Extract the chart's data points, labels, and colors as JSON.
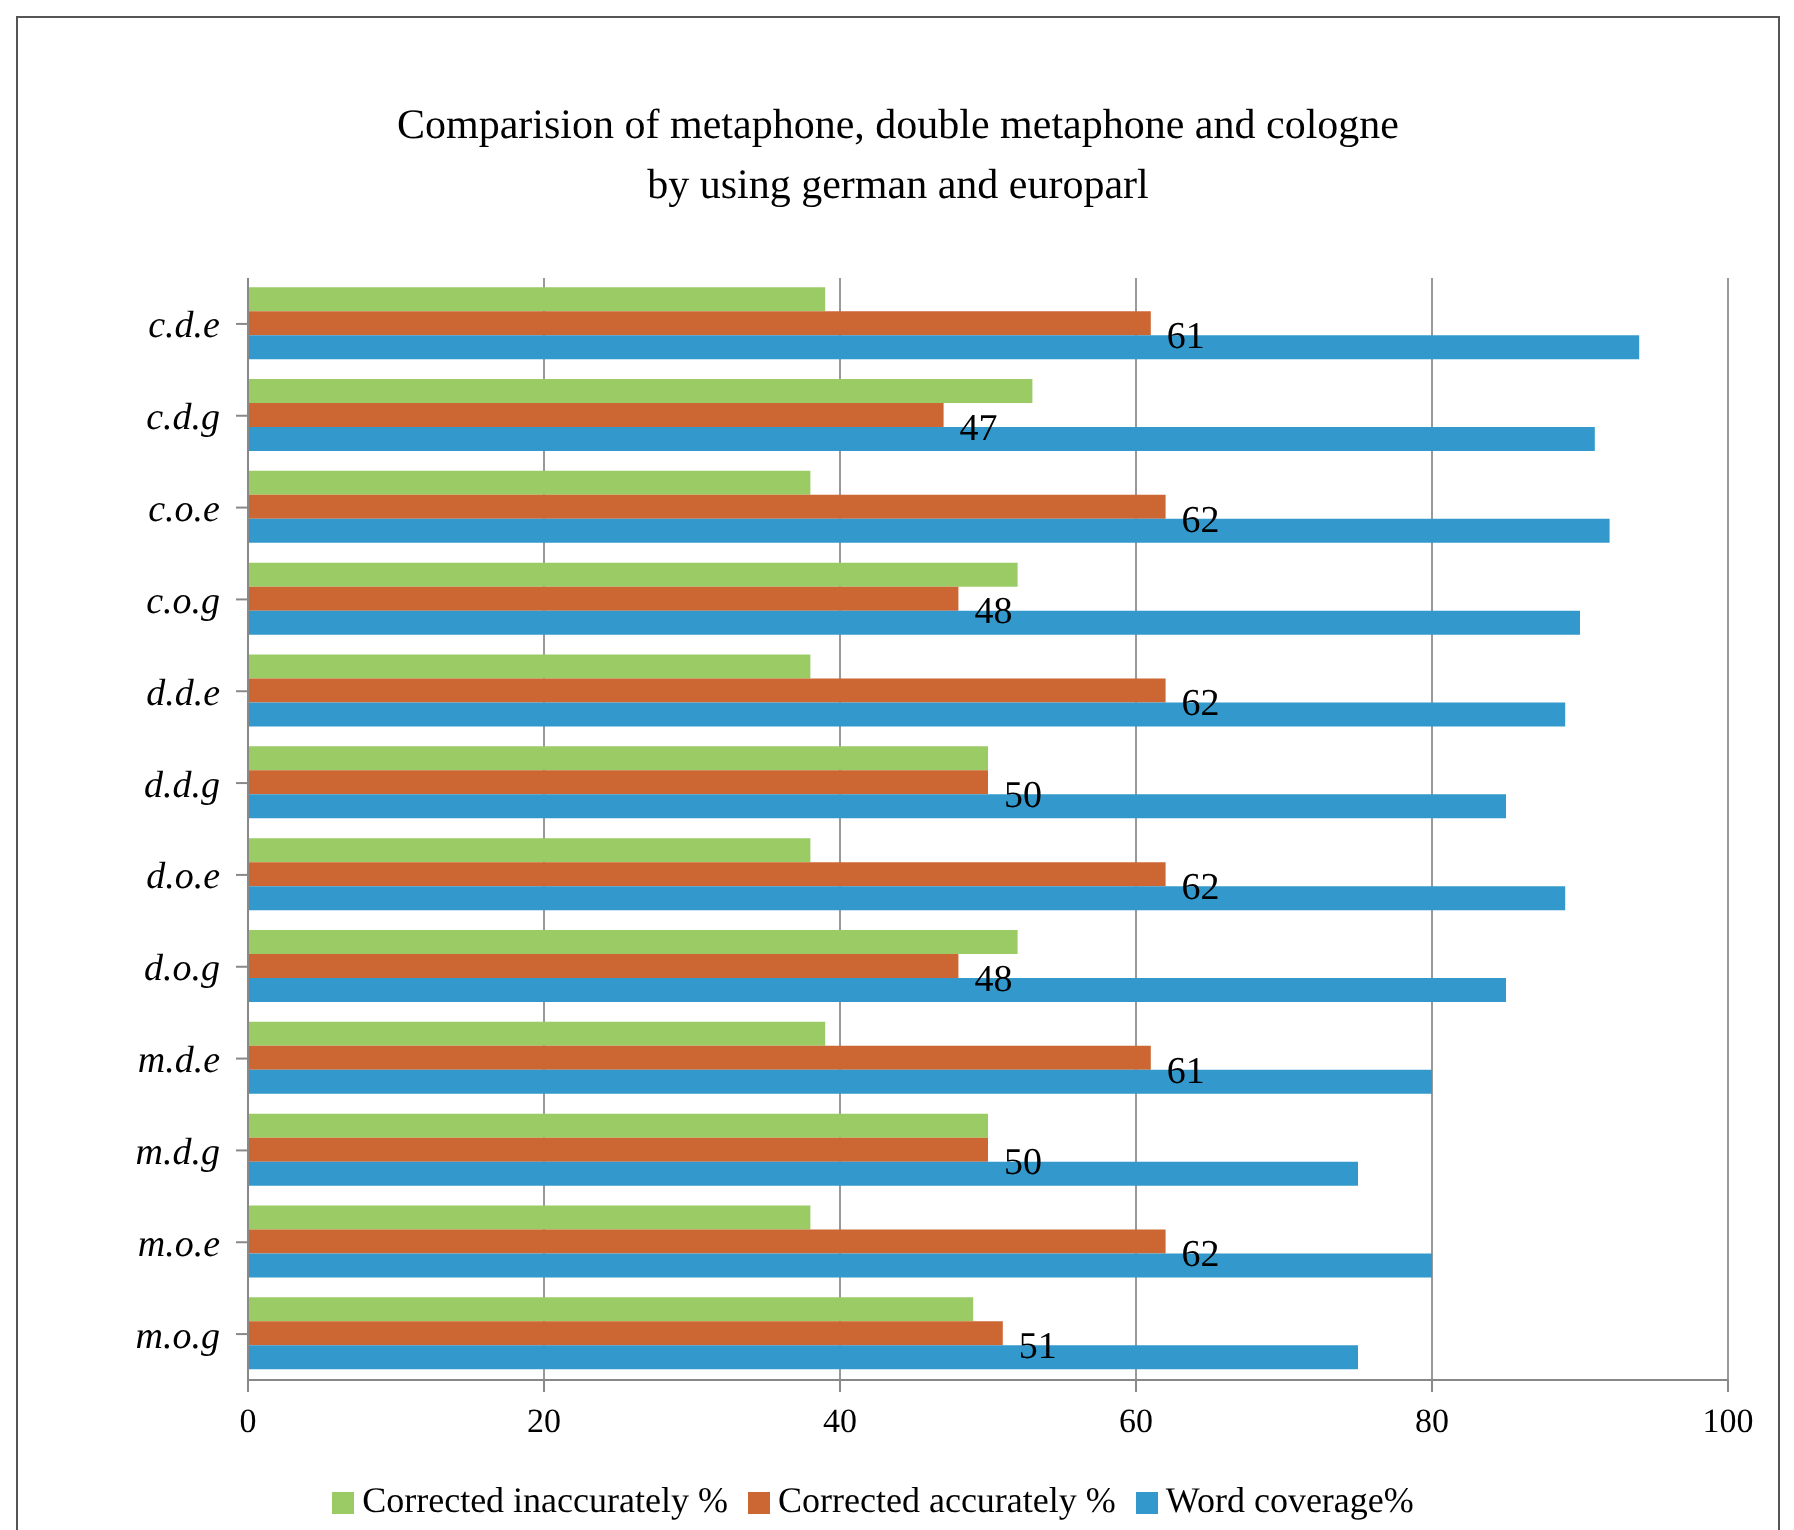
{
  "chart_data": {
    "type": "bar",
    "orientation": "horizontal",
    "title": "Comparision of metaphone, double metaphone and cologne\nby using german and europarl",
    "categories": [
      "c.d.e",
      "c.d.g",
      "c.o.e",
      "c.o.g",
      "d.d.e",
      "d.d.g",
      "d.o.e",
      "d.o.g",
      "m.d.e",
      "m.d.g",
      "m.o.e",
      "m.o.g"
    ],
    "series": [
      {
        "name": "Corrected inaccurately %",
        "color": "#9bcb64",
        "values": [
          39,
          53,
          38,
          52,
          38,
          50,
          38,
          52,
          39,
          50,
          38,
          49
        ]
      },
      {
        "name": "Corrected accurately %",
        "color": "#cc6633",
        "values": [
          61,
          47,
          62,
          48,
          62,
          50,
          62,
          48,
          61,
          50,
          62,
          51
        ],
        "value_labels": [
          "61",
          "47",
          "62",
          "48",
          "62",
          "50",
          "62",
          "48",
          "61",
          "50",
          "62",
          "51"
        ]
      },
      {
        "name": "Word coverage%",
        "color": "#3399cc",
        "values": [
          94,
          91,
          92,
          90,
          89,
          85,
          89,
          85,
          80,
          75,
          80,
          75
        ]
      }
    ],
    "xlim": [
      0,
      100
    ],
    "xticks": [
      0,
      20,
      40,
      60,
      80,
      100
    ],
    "grid": "x",
    "legend": "bottom"
  }
}
